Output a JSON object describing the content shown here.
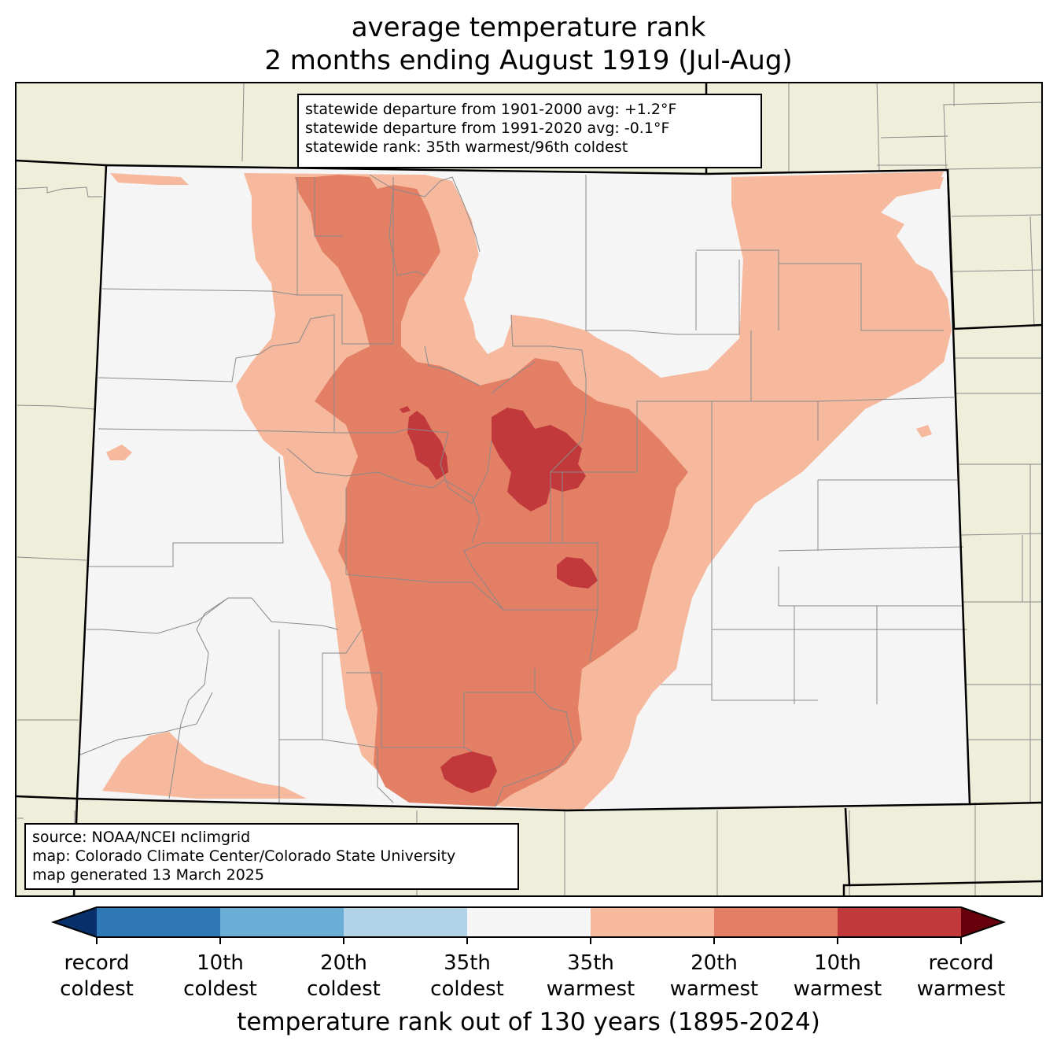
{
  "title": {
    "line1": "average temperature rank",
    "line2": "2 months ending August 1919 (Jul-Aug)"
  },
  "stats": {
    "line1": "statewide departure from 1901-2000 avg: +1.2°F",
    "line2": "statewide departure from 1991-2020 avg: -0.1°F",
    "line3": "statewide rank: 35th warmest/96th coldest"
  },
  "source": {
    "line1": "source: NOAA/NCEI nclimgrid",
    "line2": "map: Colorado Climate Center/Colorado State University",
    "line3": "map generated 13 March 2025"
  },
  "colorbar": {
    "title": "temperature rank out of 130 years (1895-2024)",
    "labels": [
      [
        "record",
        "coldest"
      ],
      [
        "10th",
        "coldest"
      ],
      [
        "20th",
        "coldest"
      ],
      [
        "35th",
        "coldest"
      ],
      [
        "35th",
        "warmest"
      ],
      [
        "20th",
        "warmest"
      ],
      [
        "10th",
        "warmest"
      ],
      [
        "record",
        "warmest"
      ]
    ],
    "colors": {
      "record_coldest": "#08306b",
      "c10": "#2e78b6",
      "c20": "#6aaed6",
      "c35": "#b3d4e8",
      "normal": "#f5f5f5",
      "w35": "#f7b99d",
      "w20": "#e27f65",
      "w10": "#c1393b",
      "record_warmest": "#67000d"
    }
  },
  "map_colors": {
    "background_states": "#efeedb",
    "county_lines": "#8a8a8a",
    "state_lines": "#000000"
  }
}
